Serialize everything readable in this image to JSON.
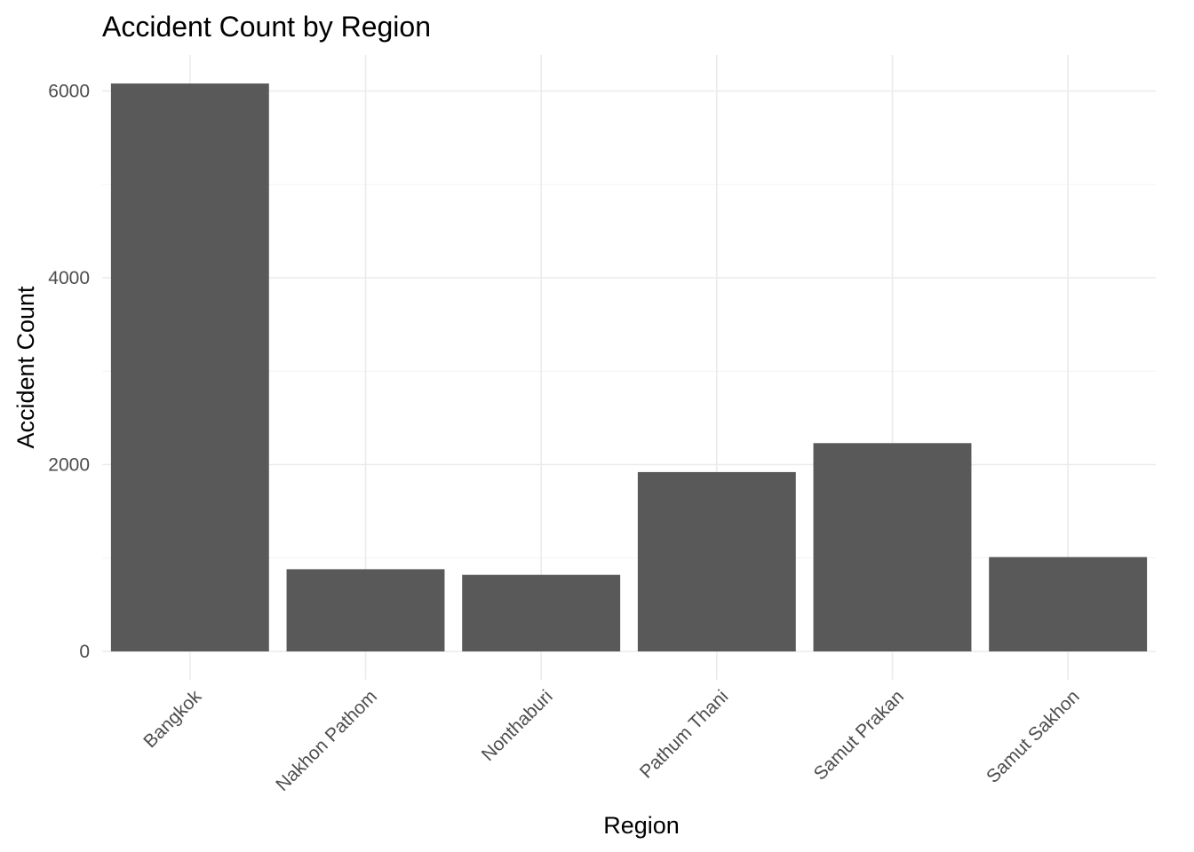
{
  "chart_data": {
    "type": "bar",
    "title": "Accident Count by Region",
    "xlabel": "Region",
    "ylabel": "Accident Count",
    "categories": [
      "Bangkok",
      "Nakhon Pathom",
      "Nonthaburi",
      "Pathum Thani",
      "Samut Prakan",
      "Samut Sakhon"
    ],
    "values": [
      6080,
      880,
      820,
      1920,
      2230,
      1010
    ],
    "ylim": [
      0,
      6250
    ],
    "yticks": [
      0,
      2000,
      4000,
      6000
    ],
    "grid": true,
    "legend": "none",
    "bar_color": "#595959",
    "grid_color": "#ebebeb"
  }
}
